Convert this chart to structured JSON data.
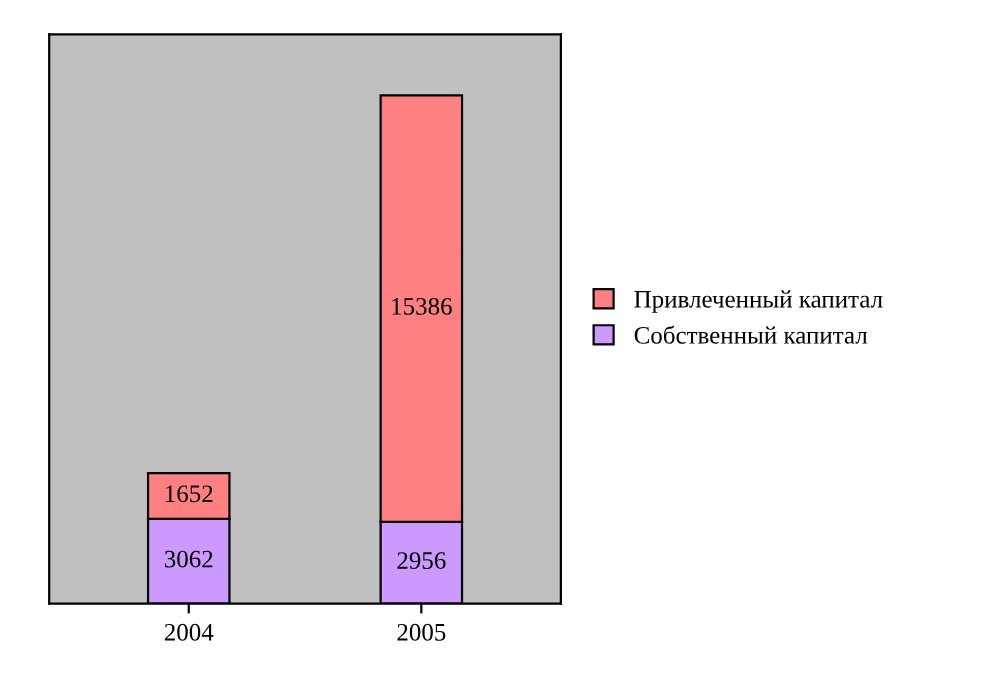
{
  "chart_data": {
    "type": "bar",
    "stacked": true,
    "categories": [
      "2004",
      "2005"
    ],
    "series": [
      {
        "name": "Собственный капитал",
        "color": "#cc99ff",
        "values": [
          3062,
          2956
        ]
      },
      {
        "name": "Привлеченный капитал",
        "color": "#ff8080",
        "values": [
          1652,
          15386
        ]
      }
    ],
    "data_labels": true,
    "legend": "right",
    "tick_labels": "x",
    "grid": false
  }
}
